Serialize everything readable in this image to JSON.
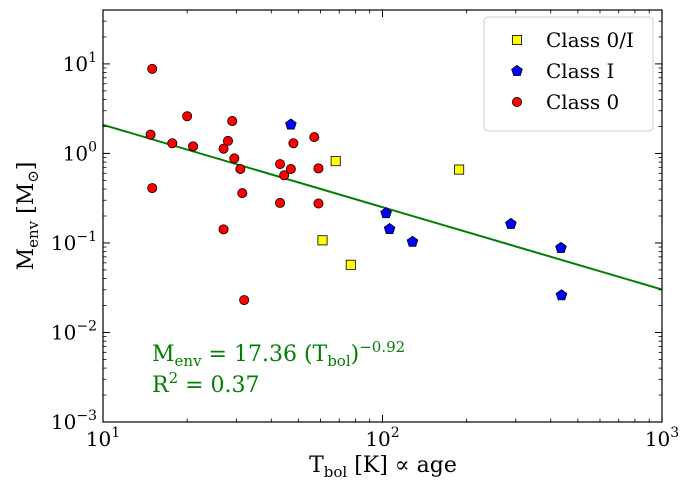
{
  "chart_data": {
    "type": "scatter",
    "xscale": "log",
    "yscale": "log",
    "xlim": [
      10,
      1000
    ],
    "ylim": [
      0.001,
      40
    ],
    "x_ticks": [
      {
        "value": 10,
        "base": "10",
        "exp": "1"
      },
      {
        "value": 100,
        "base": "10",
        "exp": "2"
      },
      {
        "value": 1000,
        "base": "10",
        "exp": "3"
      }
    ],
    "y_ticks": [
      {
        "value": 0.001,
        "base": "10",
        "exp": "−3"
      },
      {
        "value": 0.01,
        "base": "10",
        "exp": "−2"
      },
      {
        "value": 0.1,
        "base": "10",
        "exp": "−1"
      },
      {
        "value": 1,
        "base": "10",
        "exp": "0"
      },
      {
        "value": 10,
        "base": "10",
        "exp": "1"
      }
    ],
    "xlabel": {
      "main": "T",
      "sub": "bol",
      "rest": " [K] ∝ age"
    },
    "ylabel": {
      "main": "M",
      "sub": "env",
      "rest": " [M",
      "sym": "⊙",
      "close": "]"
    },
    "series": [
      {
        "name": "Class 0/I",
        "marker": "square",
        "color": "#ffff00",
        "points": [
          [
            68,
            0.82
          ],
          [
            188,
            0.66
          ],
          [
            61,
            0.107
          ],
          [
            77,
            0.057
          ]
        ]
      },
      {
        "name": "Class I",
        "marker": "pentagon",
        "color": "#0000ff",
        "points": [
          [
            47,
            2.1
          ],
          [
            103,
            0.215
          ],
          [
            106,
            0.143
          ],
          [
            128,
            0.103
          ],
          [
            288,
            0.163
          ],
          [
            435,
            0.088
          ],
          [
            437,
            0.026
          ]
        ]
      },
      {
        "name": "Class 0",
        "marker": "circle",
        "color": "#ff0000",
        "points": [
          [
            15,
            8.8
          ],
          [
            20,
            2.6
          ],
          [
            14.8,
            1.62
          ],
          [
            17.7,
            1.3
          ],
          [
            21,
            1.2
          ],
          [
            15,
            0.41
          ],
          [
            27,
            1.13
          ],
          [
            28,
            1.38
          ],
          [
            29,
            2.3
          ],
          [
            29.5,
            0.88
          ],
          [
            31,
            0.67
          ],
          [
            31.5,
            0.36
          ],
          [
            27,
            0.142
          ],
          [
            32,
            0.023
          ],
          [
            43,
            0.76
          ],
          [
            44.5,
            0.57
          ],
          [
            47,
            0.67
          ],
          [
            48,
            1.3
          ],
          [
            57,
            1.52
          ],
          [
            59,
            0.68
          ],
          [
            59,
            0.276
          ],
          [
            43,
            0.28
          ]
        ]
      }
    ],
    "fit": {
      "coef": 17.36,
      "exponent": -0.92,
      "color": "#008000",
      "r2": "0.37",
      "eq_parts": {
        "m": "M",
        "m_sub": "env",
        "eq": " = 17.36 (T",
        "t_sub": "bol",
        "close": ")",
        "exp": "−0.92"
      },
      "r2_parts": {
        "r": "R",
        "r_sup": "2",
        "rest": " = 0.37"
      }
    },
    "legend_position": "upper-right"
  }
}
